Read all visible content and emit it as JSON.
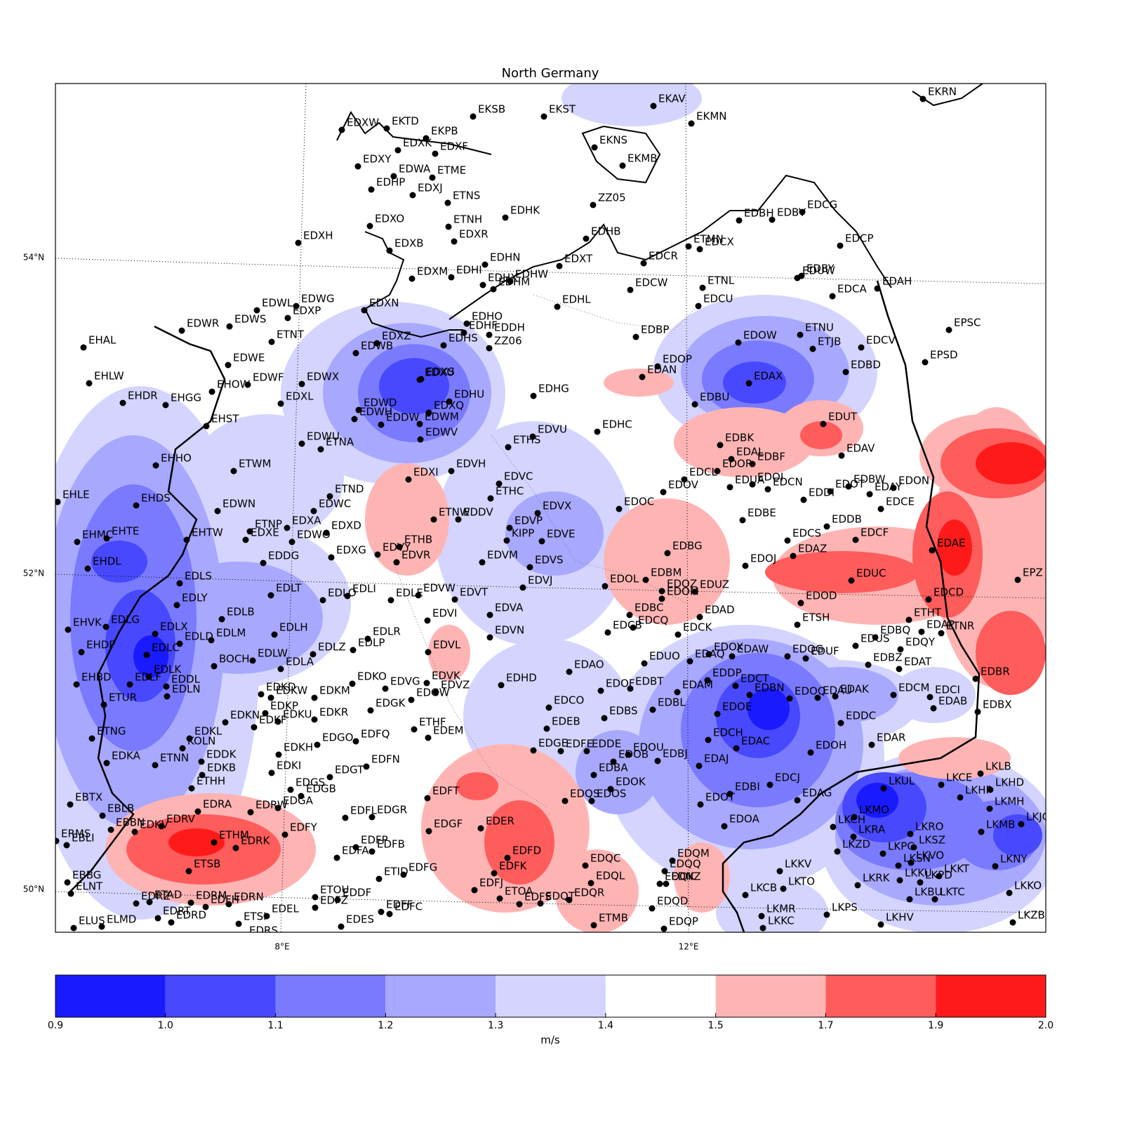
{
  "title": "North Germany",
  "graticule": {
    "lat_labels": [
      "54°N",
      "52°N",
      "50°N"
    ],
    "lon_labels": [
      "8°E",
      "12°E"
    ]
  },
  "colorbar": {
    "label": "m/s",
    "ticks": [
      0.9,
      {
        "value": 1,
        "label": "1.0"
      },
      1.1,
      1.2,
      1.3,
      1.4,
      1.5,
      1.7,
      1.9,
      {
        "value": 2,
        "label": "2.0"
      }
    ],
    "colors": [
      "#1a1aff",
      "#4848ff",
      "#7a7aff",
      "#a8a8ff",
      "#d4d4ff",
      "#ffffff",
      "#ffb4b4",
      "#ff5c5c",
      "#ff1a1a"
    ]
  },
  "stations": [
    "EKRN",
    "EKAV",
    "EKMN",
    "EKST",
    "EKSB",
    "EKTD",
    "EDXW",
    "EKPB",
    "EDXK",
    "EDXF",
    "EKNS",
    "EKMB",
    "EDXY",
    "EDWA",
    "ETME",
    "EDHP",
    "EDXJ",
    "ETNS",
    "EDHK",
    "ZZ05",
    "EDXO",
    "ETNH",
    "EDXR",
    "EDHB",
    "EDXH",
    "EDXB",
    "EDHN",
    "EDXT",
    "EDXM",
    "EDHI",
    "EDHX",
    "EDHW",
    "EDHM",
    "EDCR",
    "ETMN",
    "EDCX",
    "EDBH",
    "EDBV",
    "EDCG",
    "EDCP",
    "EDBY",
    "EDUW",
    "EDCA",
    "EDAH",
    "EDCW",
    "ETNL",
    "EDHL",
    "EDCU",
    "EDXN",
    "EDWL",
    "EDWG",
    "EDXP",
    "EDWS",
    "EDWR",
    "EHAL",
    "EDHO",
    "EDHF",
    "EDDH",
    "EDHS",
    "ZZ06",
    "EDXZ",
    "EDWB",
    "ETNT",
    "ETNU",
    "EDOW",
    "EDBP",
    "ETJB",
    "EDCV",
    "EPSC",
    "EDWE",
    "EHLW",
    "EDWF",
    "EDWX",
    "EDOP",
    "EDAN",
    "EDAX",
    "EDBD",
    "EPSD",
    "EHOW",
    "EDXS",
    "EDXU",
    "EDHG",
    "EDHU",
    "EHDR",
    "EHGG",
    "EDXL",
    "EDWD",
    "EDXQ",
    "EDBU",
    "EHST",
    "EDWH",
    "EDDW",
    "EDWM",
    "EDUT",
    "EDHC",
    "EDVU",
    "EDWU",
    "ETNA",
    "EDWV",
    "ETHS",
    "EDBK",
    "EDAL",
    "EDBF",
    "EDAV",
    "EHHO",
    "ETWM",
    "EDVH",
    "EDXI",
    "EDCL",
    "EDOR",
    "EDUA",
    "EDOI",
    "EDCN",
    "EDBW",
    "EDOT",
    "EDAY",
    "EDON",
    "ETND",
    "EDVC",
    "EHLE",
    "EHDS",
    "EDOV",
    "EDDI",
    "EDCE",
    "ETHC",
    "EDWN",
    "EDWC",
    "EDOC",
    "EDBE",
    "EDDB",
    "ETNW",
    "EDDV",
    "EDVX",
    "EDVP",
    "ETNP",
    "EDXA",
    "EDXD",
    "EDXE",
    "EDWO",
    "EHTW",
    "EHMC",
    "EHTE",
    "EDCS",
    "EDAZ",
    "EDCF",
    "EDAE",
    "KIPP",
    "EDVE",
    "ETHB",
    "EDVY",
    "EDVR",
    "EDXG",
    "EDBG",
    "EDDG",
    "EDVM",
    "EDVS",
    "EDOJ",
    "EHDL",
    "EDVJ",
    "EDBM",
    "EDOL",
    "EDLS",
    "EDUC",
    "EPZ",
    "EDLT",
    "EDOZ",
    "EDUZ",
    "EDOM",
    "EDVW",
    "EDVT",
    "EDLI",
    "EDLO",
    "EDLE",
    "EDCD",
    "EDOD",
    "EDLY",
    "EDVA",
    "EDBC",
    "EDAD",
    "EDLB",
    "EDVI",
    "ETSH",
    "ETHT",
    "EHVK",
    "EDLG",
    "EDCQ",
    "EDCB",
    "EDCK",
    "EDAP",
    "ETNR",
    "EDLX",
    "EDLH",
    "EDBQ",
    "EDLM",
    "EDLR",
    "EDVN",
    "EDLD",
    "EHDP",
    "EDLC",
    "EDLZ",
    "EDLP",
    "EDVL",
    "EDUS",
    "EDQY",
    "EDOX",
    "EDAW",
    "EDQG",
    "EDUF",
    "EDLW",
    "EDUO",
    "EDAQ",
    "EDBZ",
    "BOCH",
    "EDLA",
    "EDAT",
    "EDAO",
    "EHBD",
    "EDLK",
    "EDDL",
    "EDLF",
    "EDKO",
    "EDVG",
    "EDVK",
    "EDVZ",
    "EDHD",
    "EDOF",
    "EDBT",
    "EDAM",
    "EDDP",
    "EDCT",
    "EDBR",
    "EDKD",
    "EDKW",
    "EDKM",
    "EDGW",
    "EDOQ",
    "EDAU",
    "EDAK",
    "EDCM",
    "EDCI",
    "ETUR",
    "EDLN",
    "EDCO",
    "EDGK",
    "EDBL",
    "EDBN",
    "EDAB",
    "EDBX",
    "EDKP",
    "EDKU",
    "EDKR",
    "EDKN",
    "EDKF",
    "EDBS",
    "EDOE",
    "EDEB",
    "ETHF",
    "EDDC",
    "EDKL",
    "ETNG",
    "EDEM",
    "EDGO",
    "EDFQ",
    "EDCH",
    "EDAR",
    "KOLN",
    "EDKH",
    "EDGE",
    "EDFE",
    "EDDE",
    "EDOU",
    "EDAC",
    "EDOH",
    "EDKA",
    "ETNN",
    "EDDK",
    "EDOB",
    "EDBJ",
    "EDAJ",
    "EDFN",
    "EDKB",
    "EDKI",
    "EDBA",
    "LKLB",
    "EDGT",
    "ETHH",
    "EDOK",
    "EDCJ",
    "LKUL",
    "LKCE",
    "LKHD",
    "EDGS",
    "EDGB",
    "EDOS",
    "EDFT",
    "EDBI",
    "EDAG",
    "LKHP",
    "LKMH",
    "EBTX",
    "EDGA",
    "EDQS",
    "EDOT",
    "EBLB",
    "EDRA",
    "EDRW",
    "EDFL",
    "EDGR",
    "LKMO",
    "LKCH",
    "EDOA",
    "EDRV",
    "EDKV",
    "EBBN",
    "EDFY",
    "EDER",
    "EDGF",
    "LKRA",
    "LKRO",
    "LKMB",
    "LKJC",
    "ERMS",
    "EBLI",
    "ETHM",
    "EDRK",
    "EDFP",
    "EDFB",
    "LKZD",
    "LKPG",
    "LKSZ",
    "EDFA",
    "EDFD",
    "LKSN",
    "LKVO",
    "EDQC",
    "EDQM",
    "EDQQ",
    "EDFK",
    "ETSB",
    "LKKV",
    "LKNY",
    "ETID",
    "EDFG",
    "EDQL",
    "LKKU",
    "LKPD",
    "LKKT",
    "EDQK",
    "EDNZ",
    "LKRK",
    "LKTO",
    "EBBG",
    "EDFJ",
    "ELNT",
    "ETOU",
    "EDDF",
    "EDQR",
    "ETOA",
    "LKCB",
    "LKTC",
    "LKKO",
    "LKBU",
    "EDRZ",
    "ETAD",
    "EDRM",
    "EDFH",
    "EDRN",
    "EDFZ",
    "EDFS",
    "EDQT",
    "EDQD",
    "EDFF",
    "EDFC",
    "EDRT",
    "EDRD",
    "EDEL",
    "EDQP",
    "LKMR",
    "LKPS",
    "LKHV",
    "ELUS",
    "ELMD",
    "ETSI",
    "EDRS",
    "EDES",
    "ETMB",
    "LKKC",
    "LKZB"
  ]
}
